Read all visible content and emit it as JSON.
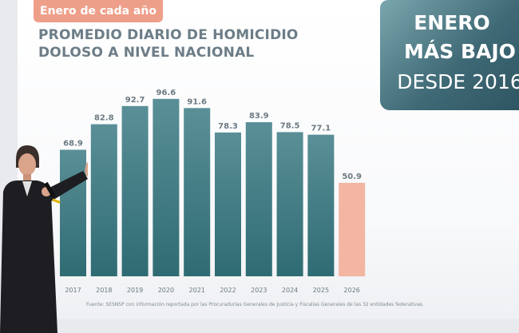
{
  "header": {
    "pill_label": "Enero de cada año"
  },
  "title": {
    "line1": "PROMEDIO DIARIO DE HOMICIDIO",
    "line2": "DOLOSO A NIVEL NACIONAL"
  },
  "callout": {
    "line1": "ENERO",
    "line2": "MÁS BAJO",
    "line3": "DESDE 2016"
  },
  "source_note": "Fuente: SESNSP con información reportada por las Procuradurías Generales de Justicia y Fiscalías Generales de las 32 entidades federativas.",
  "colors": {
    "bar_top": "#5a8f97",
    "bar_bottom": "#2f6b73",
    "highlight_bar": "#f2b6a3",
    "title": "#6c7d87",
    "pill": "#ee9f8a"
  },
  "chart_data": {
    "type": "bar",
    "categories": [
      "2017",
      "2018",
      "2019",
      "2020",
      "2021",
      "2022",
      "2023",
      "2024",
      "2025",
      "2026"
    ],
    "values": [
      68.9,
      82.8,
      92.7,
      96.6,
      91.6,
      78.3,
      83.9,
      78.5,
      77.1,
      50.9
    ],
    "highlight_category": "2026",
    "title": "PROMEDIO DIARIO DE HOMICIDIO DOLOSO A NIVEL NACIONAL",
    "xlabel": "",
    "ylabel": "",
    "ylim": [
      0,
      100
    ],
    "grid": false,
    "legend": "none"
  }
}
